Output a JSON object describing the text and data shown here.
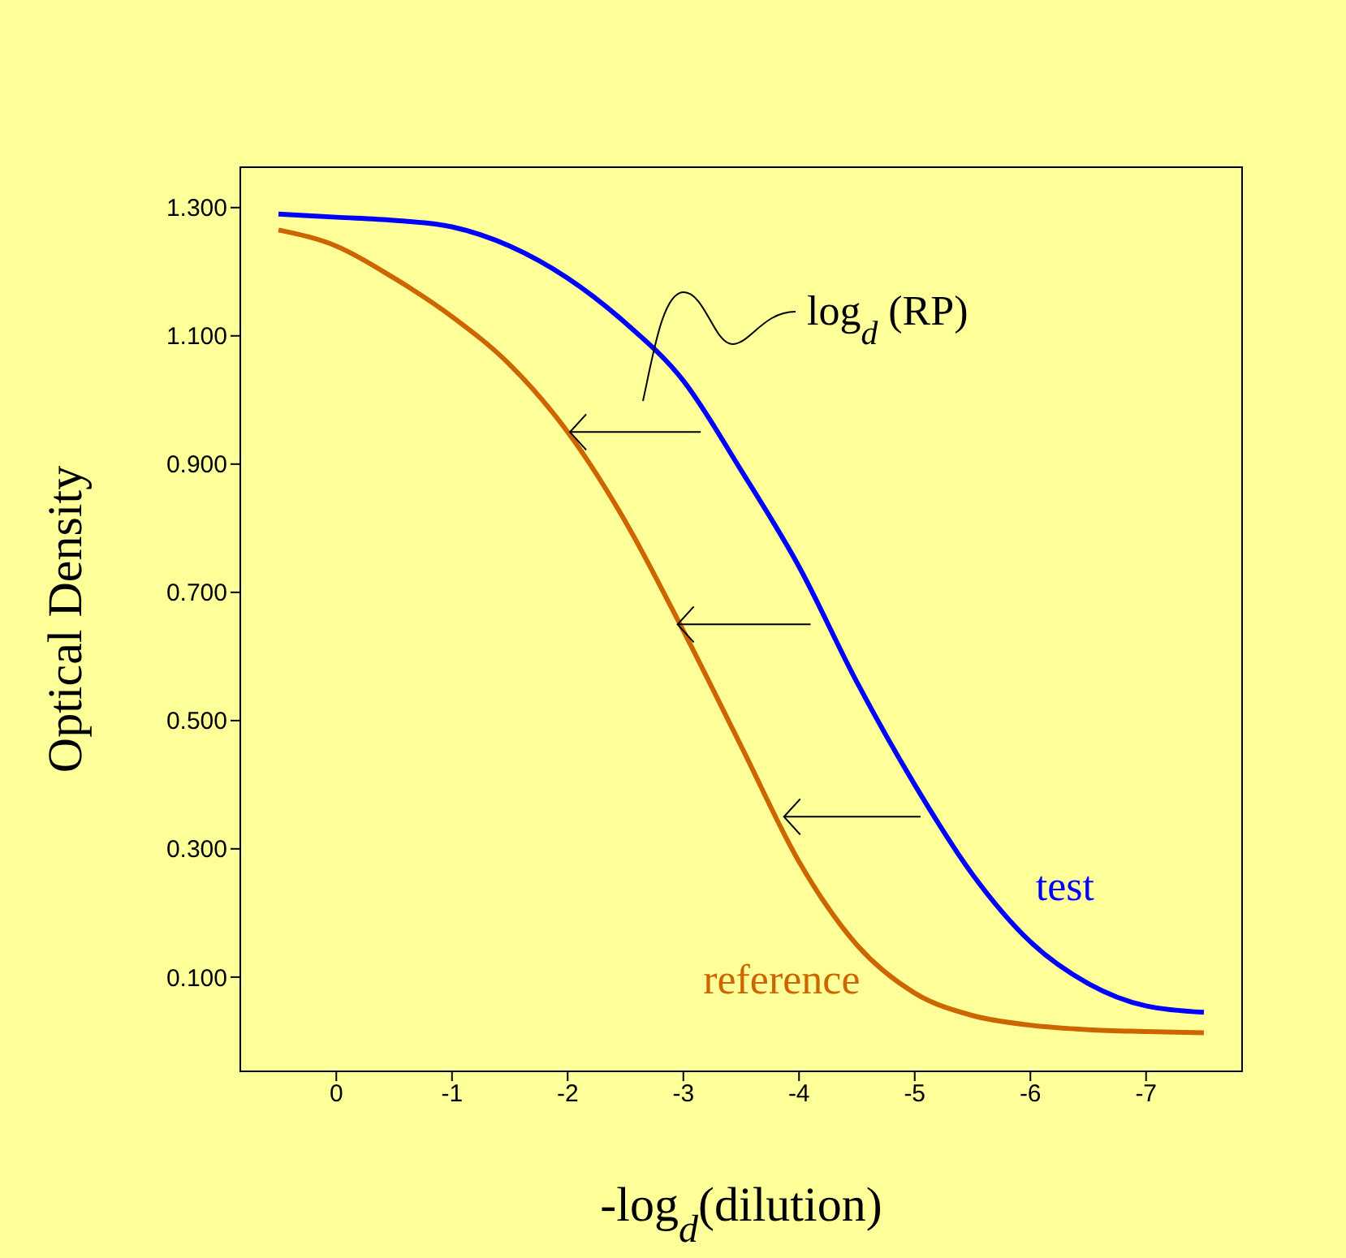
{
  "chart_data": {
    "type": "line",
    "xlabel": "-log$_{d}$(dilution)",
    "ylabel": "Optical Density",
    "annotations": [
      "log$_{d}$ (RP)"
    ],
    "x": [
      0.5,
      0,
      -0.5,
      -1,
      -1.5,
      -2,
      -2.5,
      -3,
      -3.5,
      -4,
      -4.5,
      -5,
      -5.5,
      -6,
      -6.5,
      -7,
      -7.5
    ],
    "series": [
      {
        "name": "test",
        "color": "#0000ff",
        "values": [
          1.29,
          1.285,
          1.28,
          1.27,
          1.24,
          1.19,
          1.12,
          1.03,
          0.89,
          0.74,
          0.56,
          0.4,
          0.26,
          0.155,
          0.09,
          0.055,
          0.045
        ]
      },
      {
        "name": "reference",
        "color": "#cc6600",
        "values": [
          1.265,
          1.24,
          1.19,
          1.13,
          1.055,
          0.95,
          0.81,
          0.64,
          0.46,
          0.28,
          0.15,
          0.075,
          0.04,
          0.025,
          0.018,
          0.015,
          0.013
        ]
      }
    ],
    "xlim": [
      0.83,
      -7.83
    ],
    "ylim": [
      -0.047,
      1.363
    ],
    "xticks": [
      0,
      -1,
      -2,
      -3,
      -4,
      -5,
      -6,
      -7
    ],
    "yticks": [
      {
        "value": 0.1,
        "label": "0.100"
      },
      {
        "value": 0.3,
        "label": "0.300"
      },
      {
        "value": 0.5,
        "label": "0.500"
      },
      {
        "value": 0.7,
        "label": "0.700"
      },
      {
        "value": 0.9,
        "label": "0.900"
      },
      {
        "value": 1.1,
        "label": "1.100"
      },
      {
        "value": 1.3,
        "label": "1.300"
      }
    ],
    "grid": false,
    "legend": false,
    "marker": "none",
    "line_style": "solid"
  }
}
